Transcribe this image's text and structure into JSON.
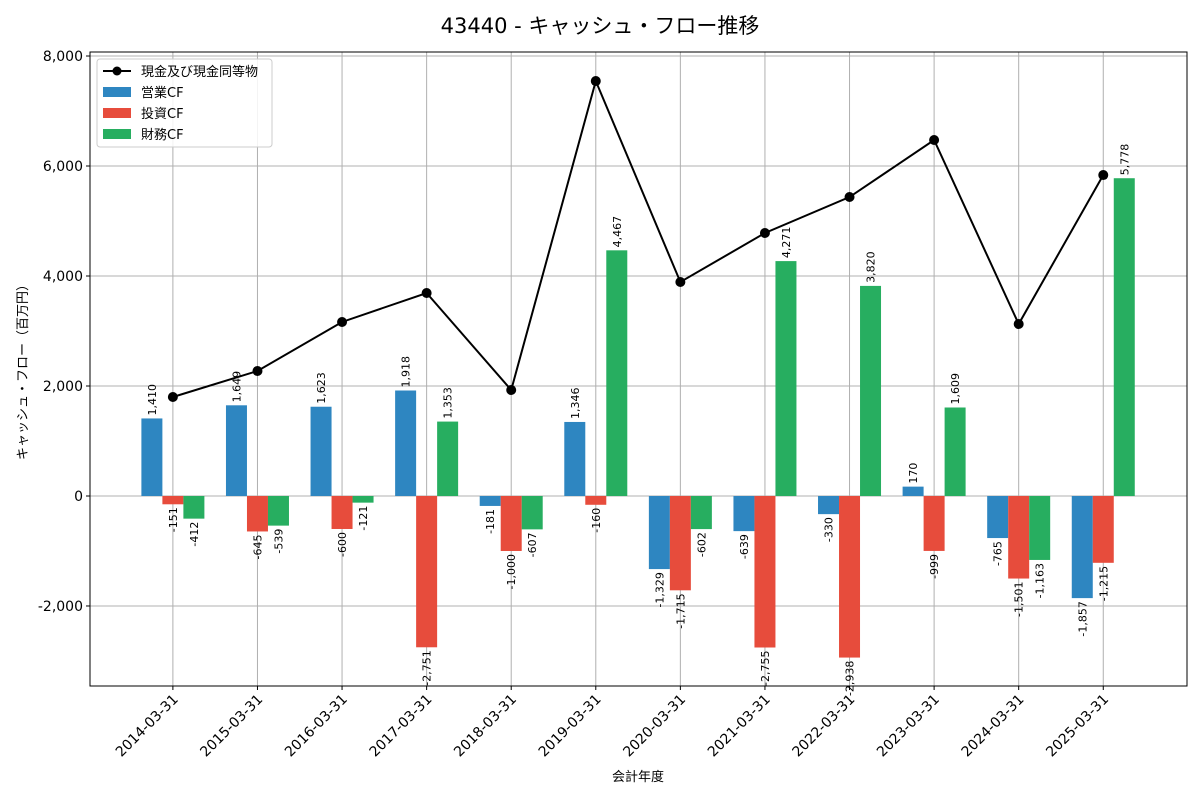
{
  "chart_data": {
    "type": "bar",
    "title": "43440 - キャッシュ・フロー推移",
    "xlabel": "会計年度",
    "ylabel": "キャッシュ・フロー（百万円）",
    "ylim": [
      -3455,
      8073
    ],
    "yticks": [
      -2000,
      0,
      2000,
      4000,
      6000,
      8000
    ],
    "ytick_labels": [
      "-2,000",
      "0",
      "2,000",
      "4,000",
      "6,000",
      "8,000"
    ],
    "grid": true,
    "legend_position": "top-left",
    "categories": [
      "2014-03-31",
      "2015-03-31",
      "2016-03-31",
      "2017-03-31",
      "2018-03-31",
      "2019-03-31",
      "2020-03-31",
      "2021-03-31",
      "2022-03-31",
      "2023-03-31",
      "2024-03-31",
      "2025-03-31"
    ],
    "series": [
      {
        "name": "営業CF",
        "type": "bar",
        "color": "#2e86c1",
        "values": [
          1410,
          1649,
          1623,
          1918,
          -181,
          1346,
          -1329,
          -639,
          -330,
          170,
          -765,
          -1857
        ]
      },
      {
        "name": "投資CF",
        "type": "bar",
        "color": "#e74c3c",
        "values": [
          -151,
          -645,
          -600,
          -2751,
          -1000,
          -160,
          -1715,
          -2755,
          -2938,
          -999,
          -1501,
          -1215
        ]
      },
      {
        "name": "財務CF",
        "type": "bar",
        "color": "#27ae60",
        "values": [
          -412,
          -539,
          -121,
          1353,
          -607,
          4467,
          -602,
          4271,
          3820,
          1609,
          -1163,
          5778
        ]
      },
      {
        "name": "現金及び現金同等物",
        "type": "line",
        "color": "#000000",
        "values": [
          1800,
          2273,
          3164,
          3691,
          1927,
          7545,
          3891,
          4782,
          5436,
          6473,
          3127,
          5836
        ]
      }
    ]
  }
}
